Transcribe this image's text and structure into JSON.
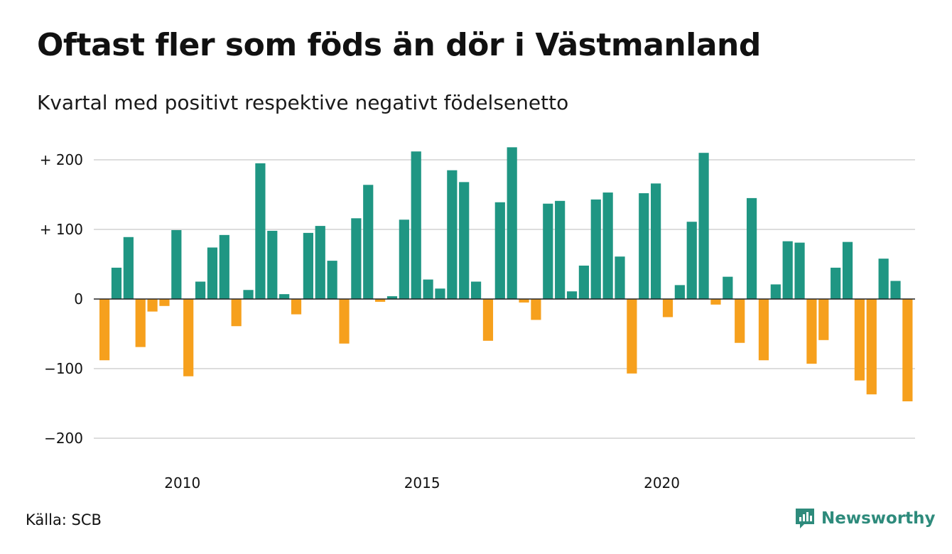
{
  "title": "Oftast fler som föds än dör i Västmanland",
  "subtitle": "Kvartal med positivt respektive negativt födelsenetto",
  "source": "Källa: SCB",
  "brand": "Newsworthy",
  "colors": {
    "positive": "#1f9683",
    "negative": "#f6a01d",
    "grid": "#dddddd",
    "zero_line": "#222222",
    "brand": "#2e8b7c"
  },
  "chart_data": {
    "type": "bar",
    "ylim": [
      -230,
      230
    ],
    "yticks": [
      {
        "value": 200,
        "label": "+ 200"
      },
      {
        "value": 100,
        "label": "+ 100"
      },
      {
        "value": 0,
        "label": "0"
      },
      {
        "value": -100,
        "label": "−100"
      },
      {
        "value": -200,
        "label": "−200"
      }
    ],
    "xticks": [
      {
        "index": 6,
        "label": "2010"
      },
      {
        "index": 26,
        "label": "2015"
      },
      {
        "index": 46,
        "label": "2020"
      }
    ],
    "grid": true,
    "values": [
      -88,
      45,
      89,
      -69,
      -18,
      -10,
      99,
      -111,
      25,
      74,
      92,
      -39,
      13,
      195,
      98,
      7,
      -22,
      95,
      105,
      55,
      -64,
      116,
      164,
      -4,
      4,
      114,
      212,
      28,
      15,
      185,
      168,
      25,
      -60,
      139,
      218,
      -5,
      -30,
      137,
      141,
      11,
      48,
      143,
      153,
      61,
      -107,
      152,
      166,
      -26,
      20,
      111,
      210,
      -8,
      32,
      -63,
      145,
      -88,
      21,
      83,
      81,
      -93,
      -59,
      45,
      82,
      -117,
      -137,
      58,
      26,
      -147
    ]
  }
}
